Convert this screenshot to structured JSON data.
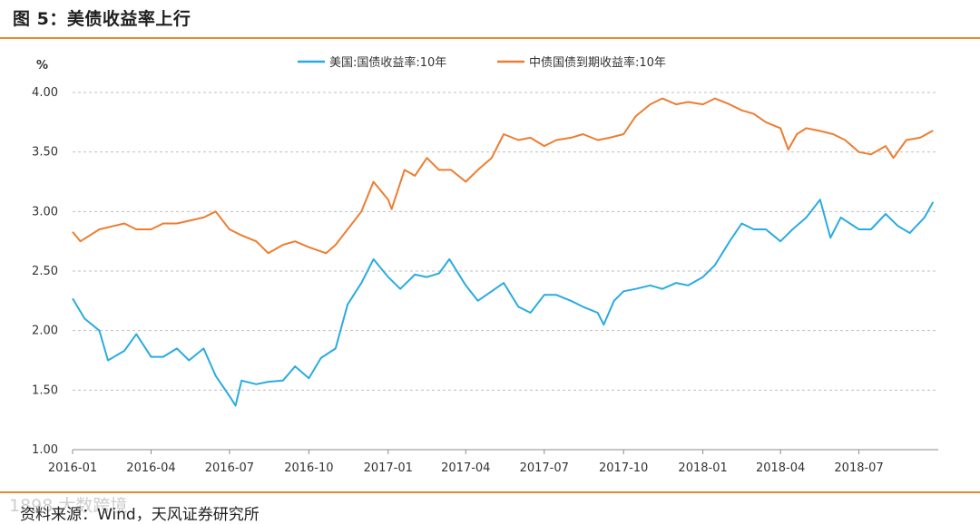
{
  "figure": {
    "title": "图 5：美债收益率上行",
    "source": "资料来源：Wind，天风证券研究所",
    "watermark": "1898 大数跨境"
  },
  "colors": {
    "accent_rule": "#e8892b",
    "series_us": "#29abe2",
    "series_cn": "#ed7d31",
    "grid": "#bfbfbf"
  },
  "chart_data": {
    "type": "line",
    "ylabel": "%",
    "ylim": [
      1.0,
      4.0
    ],
    "yticks": [
      "1.00",
      "1.50",
      "2.00",
      "2.50",
      "3.00",
      "3.50",
      "4.00"
    ],
    "ytick_values": [
      1.0,
      1.5,
      2.0,
      2.5,
      3.0,
      3.5,
      4.0
    ],
    "xlim": [
      "2016-01",
      "2018-10"
    ],
    "xticks": [
      "2016-01",
      "2016-04",
      "2016-07",
      "2016-10",
      "2017-01",
      "2017-04",
      "2017-07",
      "2017-10",
      "2018-01",
      "2018-04",
      "2018-07"
    ],
    "grid": true,
    "legend_position": "top-center",
    "series": [
      {
        "name": "美国:国债收益率:10年",
        "color": "#29abe2",
        "points": [
          [
            "2016-01-01",
            2.27
          ],
          [
            "2016-01-15",
            2.1
          ],
          [
            "2016-02-01",
            2.0
          ],
          [
            "2016-02-11",
            1.75
          ],
          [
            "2016-03-01",
            1.83
          ],
          [
            "2016-03-15",
            1.97
          ],
          [
            "2016-04-01",
            1.78
          ],
          [
            "2016-04-15",
            1.78
          ],
          [
            "2016-05-01",
            1.85
          ],
          [
            "2016-05-15",
            1.75
          ],
          [
            "2016-06-01",
            1.85
          ],
          [
            "2016-06-15",
            1.62
          ],
          [
            "2016-07-01",
            1.45
          ],
          [
            "2016-07-08",
            1.37
          ],
          [
            "2016-07-15",
            1.58
          ],
          [
            "2016-08-01",
            1.55
          ],
          [
            "2016-08-15",
            1.57
          ],
          [
            "2016-09-01",
            1.58
          ],
          [
            "2016-09-15",
            1.7
          ],
          [
            "2016-10-01",
            1.6
          ],
          [
            "2016-10-15",
            1.77
          ],
          [
            "2016-11-01",
            1.85
          ],
          [
            "2016-11-15",
            2.22
          ],
          [
            "2016-12-01",
            2.4
          ],
          [
            "2016-12-15",
            2.6
          ],
          [
            "2017-01-01",
            2.45
          ],
          [
            "2017-01-15",
            2.35
          ],
          [
            "2017-02-01",
            2.47
          ],
          [
            "2017-02-15",
            2.45
          ],
          [
            "2017-03-01",
            2.48
          ],
          [
            "2017-03-13",
            2.6
          ],
          [
            "2017-04-01",
            2.38
          ],
          [
            "2017-04-15",
            2.25
          ],
          [
            "2017-05-01",
            2.33
          ],
          [
            "2017-05-15",
            2.4
          ],
          [
            "2017-06-01",
            2.2
          ],
          [
            "2017-06-15",
            2.15
          ],
          [
            "2017-07-01",
            2.3
          ],
          [
            "2017-07-15",
            2.3
          ],
          [
            "2017-08-01",
            2.25
          ],
          [
            "2017-08-15",
            2.2
          ],
          [
            "2017-09-01",
            2.15
          ],
          [
            "2017-09-08",
            2.05
          ],
          [
            "2017-09-20",
            2.25
          ],
          [
            "2017-10-01",
            2.33
          ],
          [
            "2017-10-15",
            2.35
          ],
          [
            "2017-11-01",
            2.38
          ],
          [
            "2017-11-15",
            2.35
          ],
          [
            "2017-12-01",
            2.4
          ],
          [
            "2017-12-15",
            2.38
          ],
          [
            "2018-01-01",
            2.45
          ],
          [
            "2018-01-15",
            2.55
          ],
          [
            "2018-02-01",
            2.75
          ],
          [
            "2018-02-15",
            2.9
          ],
          [
            "2018-03-01",
            2.85
          ],
          [
            "2018-03-15",
            2.85
          ],
          [
            "2018-04-01",
            2.75
          ],
          [
            "2018-04-15",
            2.85
          ],
          [
            "2018-05-01",
            2.95
          ],
          [
            "2018-05-17",
            3.1
          ],
          [
            "2018-05-29",
            2.78
          ],
          [
            "2018-06-10",
            2.95
          ],
          [
            "2018-07-01",
            2.85
          ],
          [
            "2018-07-15",
            2.85
          ],
          [
            "2018-08-01",
            2.98
          ],
          [
            "2018-08-15",
            2.88
          ],
          [
            "2018-08-29",
            2.82
          ],
          [
            "2018-09-15",
            2.95
          ],
          [
            "2018-09-25",
            3.08
          ]
        ]
      },
      {
        "name": "中债国债到期收益率:10年",
        "color": "#ed7d31",
        "points": [
          [
            "2016-01-01",
            2.83
          ],
          [
            "2016-01-10",
            2.75
          ],
          [
            "2016-02-01",
            2.85
          ],
          [
            "2016-03-01",
            2.9
          ],
          [
            "2016-03-15",
            2.85
          ],
          [
            "2016-04-01",
            2.85
          ],
          [
            "2016-04-15",
            2.9
          ],
          [
            "2016-05-01",
            2.9
          ],
          [
            "2016-06-01",
            2.95
          ],
          [
            "2016-06-15",
            3.0
          ],
          [
            "2016-07-01",
            2.85
          ],
          [
            "2016-07-15",
            2.8
          ],
          [
            "2016-08-01",
            2.75
          ],
          [
            "2016-08-15",
            2.65
          ],
          [
            "2016-09-01",
            2.72
          ],
          [
            "2016-09-15",
            2.75
          ],
          [
            "2016-10-01",
            2.7
          ],
          [
            "2016-10-21",
            2.65
          ],
          [
            "2016-11-01",
            2.72
          ],
          [
            "2016-11-15",
            2.85
          ],
          [
            "2016-12-01",
            3.0
          ],
          [
            "2016-12-15",
            3.25
          ],
          [
            "2017-01-01",
            3.1
          ],
          [
            "2017-01-05",
            3.02
          ],
          [
            "2017-01-20",
            3.35
          ],
          [
            "2017-02-01",
            3.3
          ],
          [
            "2017-02-15",
            3.45
          ],
          [
            "2017-03-01",
            3.35
          ],
          [
            "2017-03-15",
            3.35
          ],
          [
            "2017-04-01",
            3.25
          ],
          [
            "2017-04-15",
            3.35
          ],
          [
            "2017-05-01",
            3.45
          ],
          [
            "2017-05-15",
            3.65
          ],
          [
            "2017-06-01",
            3.6
          ],
          [
            "2017-06-15",
            3.62
          ],
          [
            "2017-07-01",
            3.55
          ],
          [
            "2017-07-15",
            3.6
          ],
          [
            "2017-08-01",
            3.62
          ],
          [
            "2017-08-15",
            3.65
          ],
          [
            "2017-09-01",
            3.6
          ],
          [
            "2017-09-15",
            3.62
          ],
          [
            "2017-10-01",
            3.65
          ],
          [
            "2017-10-15",
            3.8
          ],
          [
            "2017-11-01",
            3.9
          ],
          [
            "2017-11-15",
            3.95
          ],
          [
            "2017-12-01",
            3.9
          ],
          [
            "2017-12-15",
            3.92
          ],
          [
            "2018-01-01",
            3.9
          ],
          [
            "2018-01-15",
            3.95
          ],
          [
            "2018-02-01",
            3.9
          ],
          [
            "2018-02-15",
            3.85
          ],
          [
            "2018-03-01",
            3.82
          ],
          [
            "2018-03-15",
            3.75
          ],
          [
            "2018-04-01",
            3.7
          ],
          [
            "2018-04-10",
            3.52
          ],
          [
            "2018-04-20",
            3.65
          ],
          [
            "2018-05-01",
            3.7
          ],
          [
            "2018-05-15",
            3.68
          ],
          [
            "2018-06-01",
            3.65
          ],
          [
            "2018-06-15",
            3.6
          ],
          [
            "2018-07-01",
            3.5
          ],
          [
            "2018-07-15",
            3.48
          ],
          [
            "2018-08-01",
            3.55
          ],
          [
            "2018-08-10",
            3.45
          ],
          [
            "2018-08-25",
            3.6
          ],
          [
            "2018-09-10",
            3.62
          ],
          [
            "2018-09-25",
            3.68
          ]
        ]
      }
    ]
  }
}
